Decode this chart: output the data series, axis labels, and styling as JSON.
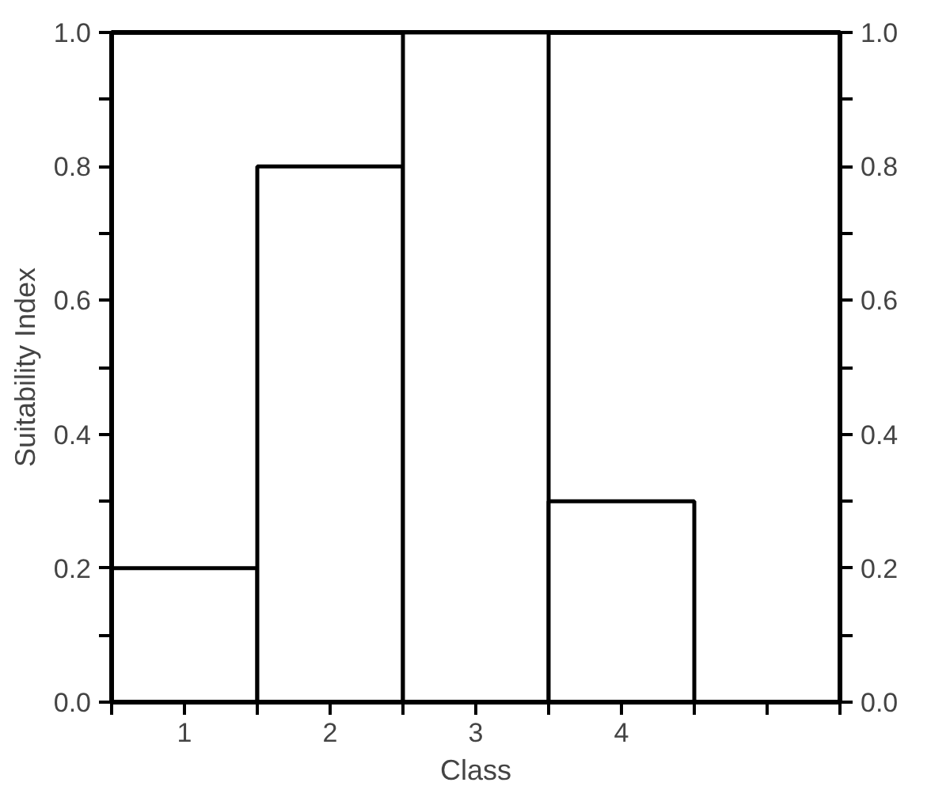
{
  "chart_data": {
    "type": "bar",
    "xlabel": "Class",
    "ylabel": "Suitability Index",
    "x": [
      1,
      2,
      3,
      4
    ],
    "values": [
      0.2,
      0.8,
      1.0,
      0.3
    ],
    "color": "#ffffff",
    "xlim": [
      0.5,
      5.5
    ],
    "xticks": [
      {
        "value": 0.5,
        "label": null
      },
      {
        "value": 1,
        "label": "1"
      },
      {
        "value": 1.5,
        "label": null
      },
      {
        "value": 2,
        "label": "2"
      },
      {
        "value": 2.5,
        "label": null
      },
      {
        "value": 3,
        "label": "3"
      },
      {
        "value": 3.5,
        "label": null
      },
      {
        "value": 4,
        "label": "4"
      },
      {
        "value": 4.5,
        "label": null
      },
      {
        "value": 5,
        "label": null
      },
      {
        "value": 5.5,
        "label": null
      }
    ],
    "ylim": [
      0,
      1.0
    ],
    "yticks": [
      {
        "value": 0,
        "label": "0.0"
      },
      {
        "value": 0.1,
        "label": null
      },
      {
        "value": 0.2,
        "label": "0.2"
      },
      {
        "value": 0.3,
        "label": null
      },
      {
        "value": 0.4,
        "label": "0.4"
      },
      {
        "value": 0.5,
        "label": null
      },
      {
        "value": 0.6,
        "label": "0.6"
      },
      {
        "value": 0.7,
        "label": null
      },
      {
        "value": 0.8,
        "label": "0.8"
      },
      {
        "value": 0.9,
        "label": null
      },
      {
        "value": 1.0,
        "label": "1.0"
      }
    ],
    "y2lim": [
      0,
      1.0
    ],
    "y2ticks": [
      {
        "value": 0,
        "label": "0.0"
      },
      {
        "value": 0.1,
        "label": null
      },
      {
        "value": 0.2,
        "label": "0.2"
      },
      {
        "value": 0.3,
        "label": null
      },
      {
        "value": 0.4,
        "label": "0.4"
      },
      {
        "value": 0.5,
        "label": null
      },
      {
        "value": 0.6,
        "label": "0.6"
      },
      {
        "value": 0.7,
        "label": null
      },
      {
        "value": 0.8,
        "label": "0.8"
      },
      {
        "value": 0.9,
        "label": null
      },
      {
        "value": 1.0,
        "label": "1.0"
      }
    ],
    "grid": false
  }
}
